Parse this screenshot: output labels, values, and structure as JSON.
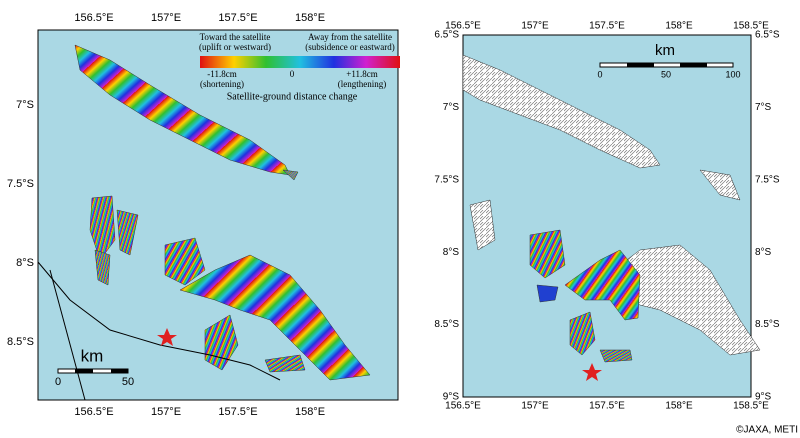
{
  "left_map": {
    "x_ticks": [
      "156.5°E",
      "157°E",
      "157.5°E",
      "158°E"
    ],
    "y_ticks": [
      "7°S",
      "7.5°S",
      "8°S",
      "8.5°S"
    ],
    "legend": {
      "left_title": "Toward the satellite",
      "left_sub": "(uplift or westward)",
      "right_title": "Away from the satellite",
      "right_sub": "(subsidence or eastward)",
      "min": "-11.8cm",
      "mid": "0",
      "max": "+11.8cm",
      "min_note": "(shortening)",
      "max_note": "(lengthening)",
      "caption": "Satellite-ground distance change"
    },
    "scale": {
      "unit": "km",
      "labels": [
        "0",
        "50"
      ]
    }
  },
  "right_map": {
    "x_ticks": [
      "156.5°E",
      "157°E",
      "157.5°E",
      "158°E",
      "158.5°E"
    ],
    "y_ticks": [
      "6.5°S",
      "7°S",
      "7.5°S",
      "8°S",
      "8.5°S",
      "9°S"
    ],
    "scale": {
      "unit": "km",
      "labels": [
        "0",
        "50",
        "100"
      ]
    }
  },
  "credit": "©JAXA, METI"
}
